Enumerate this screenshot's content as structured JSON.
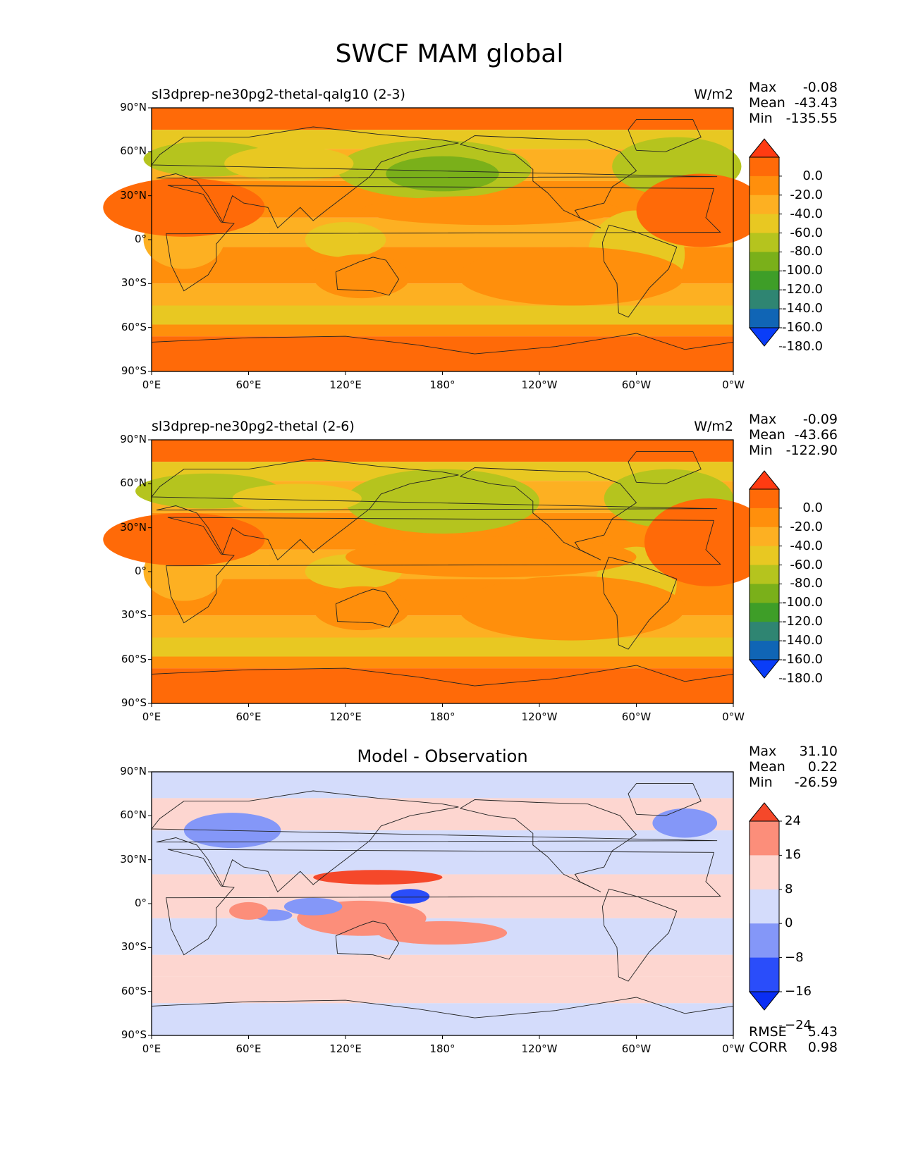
{
  "figure": {
    "title": "SWCF MAM global"
  },
  "panels": [
    {
      "title": "sl3dprep-ne30pg2-thetal-qalg10 (2-3)",
      "units": "W/m2",
      "stats": [
        {
          "label": "Max",
          "value": "-0.08"
        },
        {
          "label": "Mean",
          "value": "-43.43"
        },
        {
          "label": "Min",
          "value": "-135.55"
        }
      ],
      "colorbar": {
        "ticks": [
          "0.0",
          "-20.0",
          "-40.0",
          "-60.0",
          "-80.0",
          "-100.0",
          "-120.0",
          "-140.0",
          "-160.0",
          "-180.0"
        ],
        "colors": [
          "#ff3b12",
          "#ff6a08",
          "#ff8f0c",
          "#fdb022",
          "#e8c822",
          "#b5c41e",
          "#7ab01a",
          "#3e9e28",
          "#2f8572",
          "#1065b5",
          "#0a3df8"
        ]
      }
    },
    {
      "title": "sl3dprep-ne30pg2-thetal (2-6)",
      "units": "W/m2",
      "stats": [
        {
          "label": "Max",
          "value": "-0.09"
        },
        {
          "label": "Mean",
          "value": "-43.66"
        },
        {
          "label": "Min",
          "value": "-122.90"
        }
      ],
      "colorbar": {
        "ticks": [
          "0.0",
          "-20.0",
          "-40.0",
          "-60.0",
          "-80.0",
          "-100.0",
          "-120.0",
          "-140.0",
          "-160.0",
          "-180.0"
        ],
        "colors": [
          "#ff3b12",
          "#ff6a08",
          "#ff8f0c",
          "#fdb022",
          "#e8c822",
          "#b5c41e",
          "#7ab01a",
          "#3e9e28",
          "#2f8572",
          "#1065b5",
          "#0a3df8"
        ]
      }
    },
    {
      "title": "Model - Observation",
      "units": "",
      "stats": [
        {
          "label": "Max",
          "value": "31.10"
        },
        {
          "label": "Mean",
          "value": "0.22"
        },
        {
          "label": "Min",
          "value": "-26.59"
        }
      ],
      "extra_stats": [
        {
          "label": "RMSE",
          "value": "5.43"
        },
        {
          "label": "CORR",
          "value": "0.98"
        }
      ],
      "colorbar": {
        "ticks": [
          "24",
          "16",
          "8",
          "0",
          "−8",
          "−16",
          "−24"
        ],
        "colors": [
          "#f5482a",
          "#fc8e7a",
          "#fdd6d0",
          "#d4dcfb",
          "#8497f8",
          "#2a4dfa",
          "#0a2ef4"
        ]
      }
    }
  ],
  "axes": {
    "lat_ticks": [
      "90°N",
      "60°N",
      "30°N",
      "0°",
      "30°S",
      "60°S",
      "90°S"
    ],
    "lon_ticks": [
      "0°E",
      "60°E",
      "120°E",
      "180°",
      "120°W",
      "60°W",
      "0°W"
    ]
  },
  "map_data": {
    "projection": "plate-carree",
    "lon_range": [
      0,
      360
    ],
    "lat_range": [
      -90,
      90
    ],
    "coastlines": true
  }
}
